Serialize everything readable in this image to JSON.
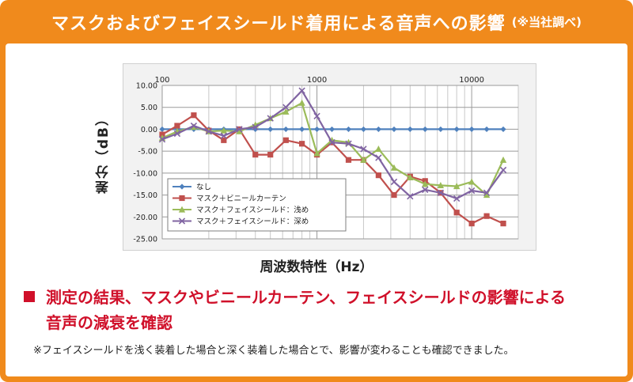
{
  "header": {
    "title": "マスクおよびフェイスシールド着用による音声への影響",
    "note": "(※当社調べ)"
  },
  "conclusion": {
    "line1": "測定の結果、マスクやビニールカーテン、フェイスシールドの影響による",
    "line2": "音声の減衰を確認"
  },
  "footnote": "※フェイスシールドを浅く装着した場合と深く装着した場合とで、影響が変わることも確認できました。",
  "colors": {
    "frame": "#f08a1c",
    "accent_red": "#d0102a",
    "series_none": "#4f81bd",
    "series_mask_curtain": "#c0504d",
    "series_mask_shallow": "#9bbb59",
    "series_mask_deep": "#8064a2"
  },
  "chart_data": {
    "type": "line",
    "xlabel": "周波数特性（Hz）",
    "ylabel": "差分（dB）",
    "x_scale": "log",
    "xlim": [
      100,
      20000
    ],
    "ylim": [
      -25,
      10
    ],
    "x_ticks": [
      {
        "value": 100,
        "label": "100"
      },
      {
        "value": 1000,
        "label": "1000"
      },
      {
        "value": 10000,
        "label": "10000"
      }
    ],
    "y_ticks": [
      {
        "value": 10,
        "label": "10.00"
      },
      {
        "value": 5,
        "label": "5.00"
      },
      {
        "value": 0,
        "label": "0.00"
      },
      {
        "value": -5,
        "label": "-5.00"
      },
      {
        "value": -10,
        "label": "-10.00"
      },
      {
        "value": -15,
        "label": "-15.00"
      },
      {
        "value": -20,
        "label": "-20.00"
      },
      {
        "value": -25,
        "label": "-25.00"
      }
    ],
    "grid": true,
    "legend_position": "lower-left",
    "series": [
      {
        "name": "なし",
        "color": "#4f81bd",
        "marker": "diamond",
        "points": [
          [
            100,
            0
          ],
          [
            125,
            0
          ],
          [
            160,
            0
          ],
          [
            200,
            0
          ],
          [
            250,
            0
          ],
          [
            315,
            0
          ],
          [
            400,
            0
          ],
          [
            500,
            0
          ],
          [
            630,
            0
          ],
          [
            800,
            0
          ],
          [
            1000,
            0
          ],
          [
            1250,
            0
          ],
          [
            1600,
            0
          ],
          [
            2000,
            0
          ],
          [
            2500,
            0
          ],
          [
            3150,
            0
          ],
          [
            4000,
            0
          ],
          [
            5000,
            0
          ],
          [
            6300,
            0
          ],
          [
            8000,
            0
          ],
          [
            10000,
            0
          ],
          [
            12500,
            0
          ],
          [
            16000,
            0
          ]
        ]
      },
      {
        "name": "マスク＋ビニールカーテン",
        "color": "#c0504d",
        "marker": "square",
        "points": [
          [
            100,
            -1.2
          ],
          [
            125,
            0.8
          ],
          [
            160,
            3.2
          ],
          [
            200,
            -0.3
          ],
          [
            250,
            -2.5
          ],
          [
            315,
            0
          ],
          [
            400,
            -5.8
          ],
          [
            500,
            -5.8
          ],
          [
            630,
            -2.5
          ],
          [
            800,
            -3.3
          ],
          [
            1000,
            -5.8
          ],
          [
            1250,
            -3.0
          ],
          [
            1600,
            -7.0
          ],
          [
            2000,
            -7.0
          ],
          [
            2500,
            -10.5
          ],
          [
            3150,
            -15.0
          ],
          [
            4000,
            -10.8
          ],
          [
            5000,
            -11.8
          ],
          [
            6300,
            -14.5
          ],
          [
            8000,
            -19.0
          ],
          [
            10000,
            -21.5
          ],
          [
            12500,
            -19.8
          ],
          [
            16000,
            -21.5
          ]
        ]
      },
      {
        "name": "マスク＋フェイスシールド：浅め",
        "color": "#9bbb59",
        "marker": "triangle",
        "points": [
          [
            100,
            -2.0
          ],
          [
            125,
            -0.5
          ],
          [
            160,
            0.5
          ],
          [
            200,
            -0.5
          ],
          [
            250,
            -0.3
          ],
          [
            315,
            -0.5
          ],
          [
            400,
            1.0
          ],
          [
            500,
            2.5
          ],
          [
            630,
            4.0
          ],
          [
            800,
            6.0
          ],
          [
            1000,
            -5.5
          ],
          [
            1250,
            -2.5
          ],
          [
            1600,
            -3.0
          ],
          [
            2000,
            -7.0
          ],
          [
            2500,
            -4.5
          ],
          [
            3150,
            -8.8
          ],
          [
            4000,
            -11.0
          ],
          [
            5000,
            -12.5
          ],
          [
            6300,
            -12.8
          ],
          [
            8000,
            -13.0
          ],
          [
            10000,
            -12.0
          ],
          [
            12500,
            -15.0
          ],
          [
            16000,
            -7.0
          ]
        ]
      },
      {
        "name": "マスク＋フェイスシールド：深め",
        "color": "#8064a2",
        "marker": "x",
        "points": [
          [
            100,
            -2.3
          ],
          [
            125,
            -1.0
          ],
          [
            160,
            0.8
          ],
          [
            200,
            -0.5
          ],
          [
            250,
            -1.5
          ],
          [
            315,
            0
          ],
          [
            400,
            0.5
          ],
          [
            500,
            2.5
          ],
          [
            630,
            5.0
          ],
          [
            800,
            8.8
          ],
          [
            1000,
            3.0
          ],
          [
            1250,
            -3.0
          ],
          [
            1600,
            -3.3
          ],
          [
            2000,
            -4.5
          ],
          [
            2500,
            -6.5
          ],
          [
            3150,
            -12.0
          ],
          [
            4000,
            -15.3
          ],
          [
            5000,
            -13.8
          ],
          [
            6300,
            -14.5
          ],
          [
            8000,
            -15.8
          ],
          [
            10000,
            -14.0
          ],
          [
            12500,
            -14.5
          ],
          [
            16000,
            -9.3
          ]
        ]
      }
    ]
  }
}
